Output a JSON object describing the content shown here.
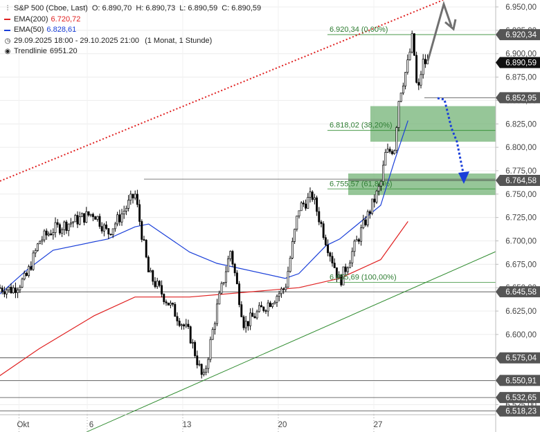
{
  "legend": {
    "title": "S&P 500 (Cboe, Last)",
    "ohlc": {
      "o": "O: 6.890,70",
      "h": "H: 6.890,73",
      "l": "L: 6.890,59",
      "c": "C: 6.890,59"
    },
    "ema200": {
      "label": "EMA(200)",
      "value": "6.720,72",
      "color": "#e02020"
    },
    "ema50": {
      "label": "EMA(50)",
      "value": "6.828,61",
      "color": "#1a3fd9"
    },
    "range": "29.09.2025 18:00 - 29.10.2025 21:00",
    "period": "(1 Monat, 1 Stunde)",
    "trendline": "Trendlinie",
    "trendline_value": "6951.20"
  },
  "chart_data": {
    "type": "candlestick",
    "ylim": [
      6510,
      6960
    ],
    "y_ticks": [
      "6.950,00",
      "6.925,00",
      "6.900,00",
      "6.875,00",
      "6.850,00",
      "6.825,00",
      "6.800,00",
      "6.775,00",
      "6.750,00",
      "6.725,00",
      "6.700,00",
      "6.675,00",
      "6.650,00",
      "6.625,00",
      "6.600,00",
      "6.575,00",
      "6.550,00",
      "6.525,00"
    ],
    "y_tick_values": [
      6950,
      6925,
      6900,
      6875,
      6850,
      6825,
      6800,
      6775,
      6750,
      6725,
      6700,
      6675,
      6650,
      6625,
      6600,
      6575,
      6550,
      6525
    ],
    "x_ticks": [
      {
        "label": "Okt",
        "date": "2025-10-01"
      },
      {
        "label": "6",
        "date": "2025-10-06"
      },
      {
        "label": "13",
        "date": "2025-10-13"
      },
      {
        "label": "20",
        "date": "2025-10-20"
      },
      {
        "label": "27",
        "date": "2025-10-27"
      }
    ],
    "price_path": [
      [
        "2025-09-29",
        6650
      ],
      [
        "2025-09-30",
        6648
      ],
      [
        "2025-10-01",
        6660
      ],
      [
        "2025-10-02",
        6700
      ],
      [
        "2025-10-03",
        6712
      ],
      [
        "2025-10-06",
        6730
      ],
      [
        "2025-10-07",
        6708
      ],
      [
        "2025-10-08",
        6728
      ],
      [
        "2025-10-09",
        6750
      ],
      [
        "2025-10-10",
        6665
      ],
      [
        "2025-10-13",
        6600
      ],
      [
        "2025-10-14",
        6550
      ],
      [
        "2025-10-15",
        6628
      ],
      [
        "2025-10-16",
        6690
      ],
      [
        "2025-10-17",
        6610
      ],
      [
        "2025-10-20",
        6650
      ],
      [
        "2025-10-21",
        6735
      ],
      [
        "2025-10-22",
        6748
      ],
      [
        "2025-10-23",
        6700
      ],
      [
        "2025-10-24",
        6656
      ],
      [
        "2025-10-27",
        6760
      ],
      [
        "2025-10-27",
        6792
      ],
      [
        "2025-10-28",
        6800
      ],
      [
        "2025-10-28",
        6855
      ],
      [
        "2025-10-29",
        6890
      ],
      [
        "2025-10-29",
        6920
      ],
      [
        "2025-10-29",
        6853
      ],
      [
        "2025-10-29",
        6890.59
      ]
    ],
    "ema50": [
      [
        "2025-09-29",
        6642
      ],
      [
        "2025-10-01",
        6668
      ],
      [
        "2025-10-03",
        6690
      ],
      [
        "2025-10-07",
        6702
      ],
      [
        "2025-10-09",
        6715
      ],
      [
        "2025-10-10",
        6718
      ],
      [
        "2025-10-13",
        6688
      ],
      [
        "2025-10-15",
        6676
      ],
      [
        "2025-10-20",
        6660
      ],
      [
        "2025-10-21",
        6665
      ],
      [
        "2025-10-23",
        6695
      ],
      [
        "2025-10-24",
        6702
      ],
      [
        "2025-10-27",
        6738
      ],
      [
        "2025-10-28",
        6785
      ],
      [
        "2025-10-29",
        6828.61
      ]
    ],
    "ema200": [
      [
        "2025-09-29",
        6555
      ],
      [
        "2025-10-02",
        6585
      ],
      [
        "2025-10-06",
        6620
      ],
      [
        "2025-10-09",
        6640
      ],
      [
        "2025-10-13",
        6640
      ],
      [
        "2025-10-17",
        6645
      ],
      [
        "2025-10-21",
        6650
      ],
      [
        "2025-10-24",
        6660
      ],
      [
        "2025-10-27",
        6680
      ],
      [
        "2025-10-29",
        6720.72
      ]
    ],
    "horizontal_levels": [
      {
        "value": 6920.34,
        "label": "6.920,34"
      },
      {
        "value": 6852.95,
        "label": "6.852,95"
      },
      {
        "value": 6764.58,
        "label": "6.764,58"
      },
      {
        "value": 6645.58,
        "label": "6.645,58"
      },
      {
        "value": 6575.04,
        "label": "6.575,04"
      },
      {
        "value": 6550.91,
        "label": "6.550,91"
      },
      {
        "value": 6532.65,
        "label": "6.532,65"
      },
      {
        "value": 6518.23,
        "label": "6.518,23"
      }
    ],
    "last_price": {
      "value": 6890.59,
      "label": "6.890,59"
    },
    "fib_levels": [
      {
        "value": 6920.34,
        "label": "6.920,34 (0,00%)"
      },
      {
        "value": 6818.02,
        "label": "6.818,02 (38,20%)"
      },
      {
        "value": 6755.57,
        "label": "6.755,57 (61,80%)"
      },
      {
        "value": 6655.69,
        "label": "6.655,69 (100,00%)"
      }
    ],
    "zones": [
      {
        "from": 6806,
        "to": 6844
      },
      {
        "from": 6749,
        "to": 6772
      }
    ],
    "resistance_line": {
      "value": 6766
    },
    "colors": {
      "fib_text": "#2e7d32",
      "zone": "#7cb87e",
      "up_trend": "#2e8b2e",
      "down_trend": "#e02020",
      "ema50": "#1a3fd9",
      "ema200": "#e02020",
      "arrow_gray": "#707070",
      "arrow_blue": "#1a3fd9"
    }
  }
}
